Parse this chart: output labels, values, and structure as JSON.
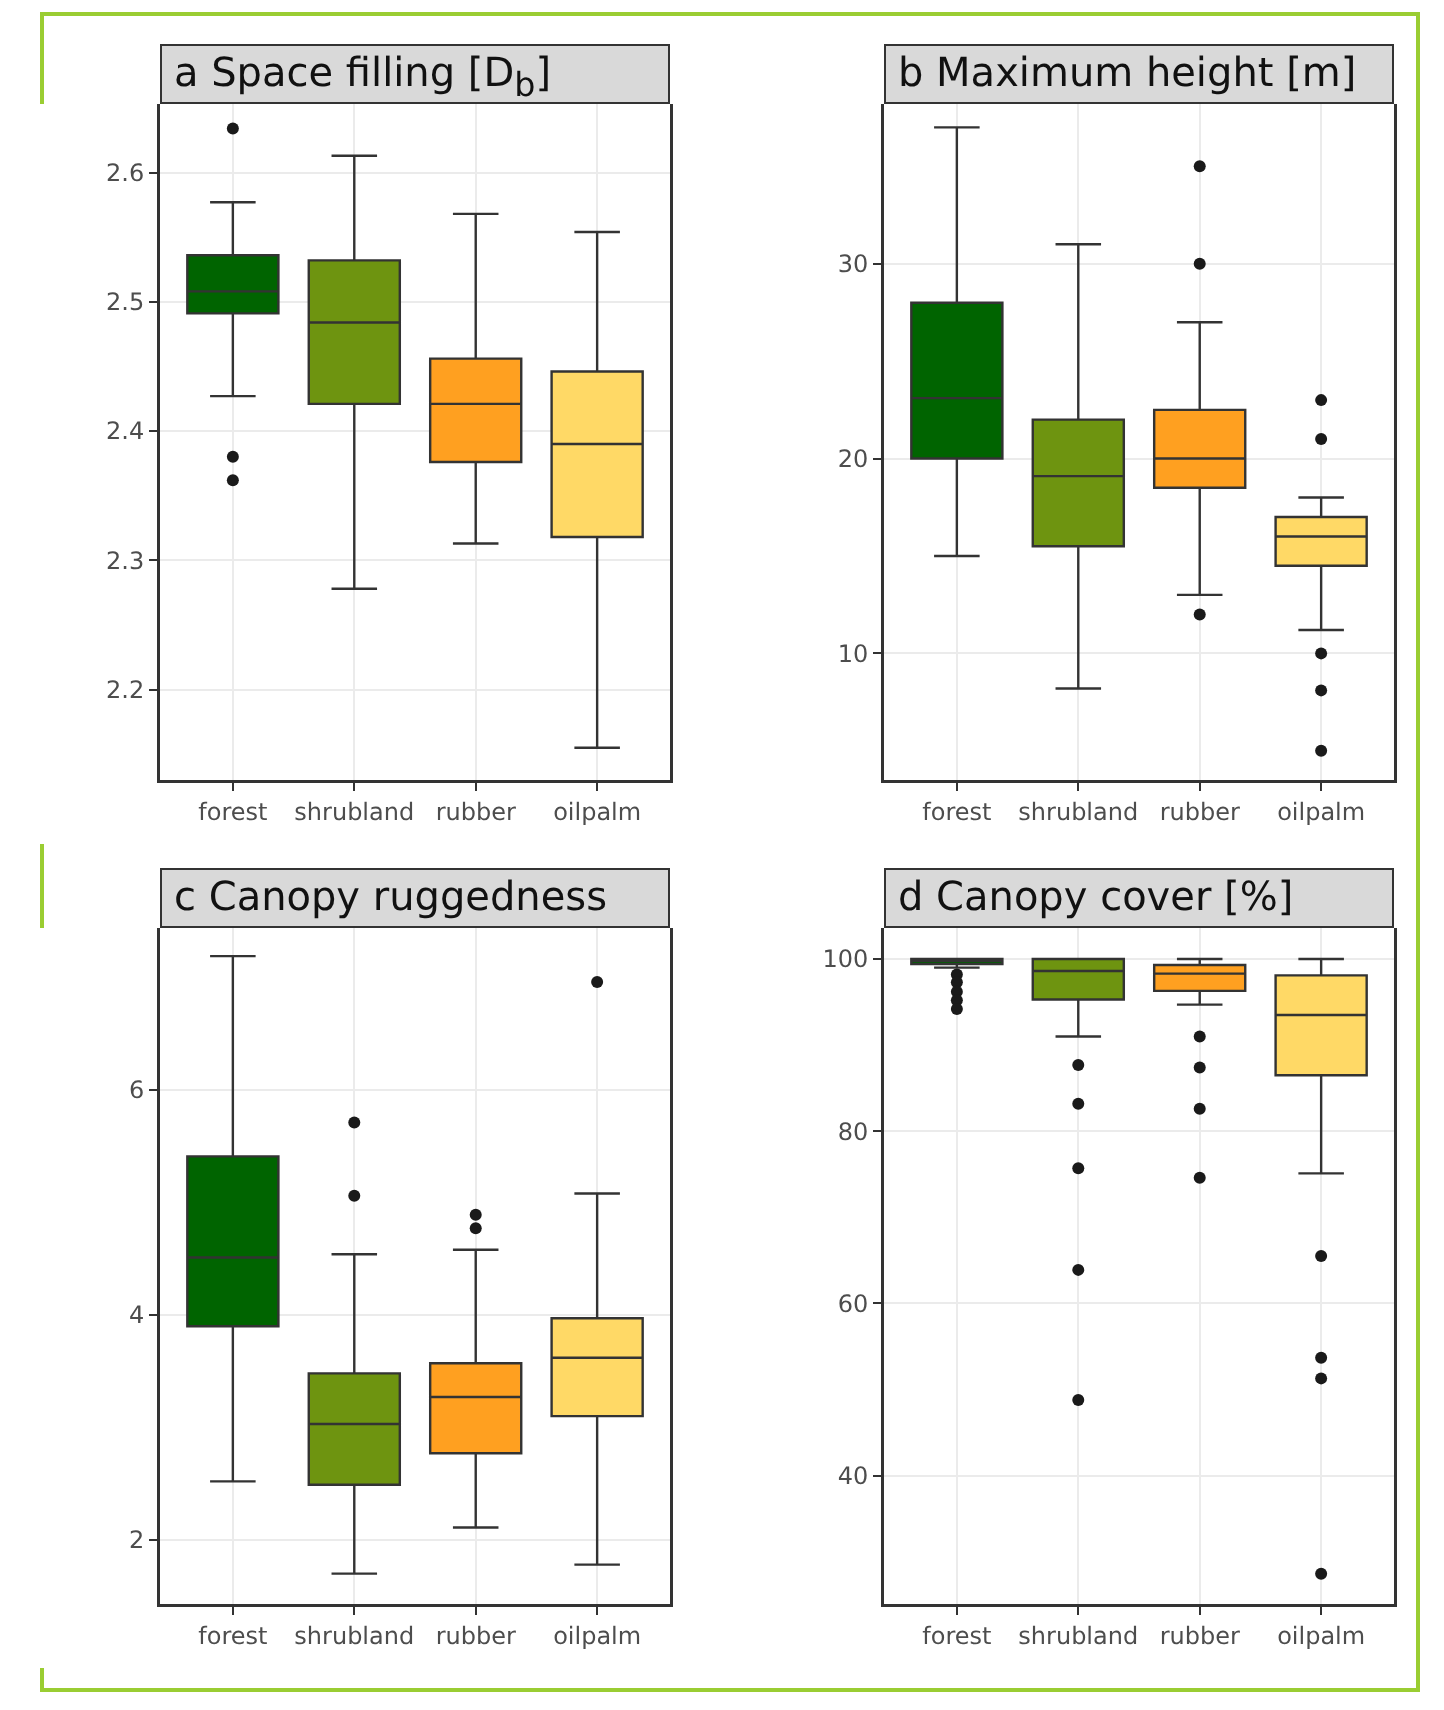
{
  "chart_data": [
    {
      "type": "box",
      "title": "a  Space filling [D$_{b}$]",
      "categories": [
        "forest",
        "shrubland",
        "rubber",
        "oilpalm"
      ],
      "colors": [
        "#006400",
        "#6e9410",
        "#ffa020",
        "#ffd966"
      ],
      "ylim": [
        2.13,
        2.653
      ],
      "yticks": [
        2.2,
        2.3,
        2.4,
        2.5,
        2.6
      ],
      "grid": true,
      "boxes": [
        {
          "low": 2.427,
          "q1": 2.491,
          "median": 2.508,
          "q3": 2.536,
          "high": 2.577,
          "outliers": [
            2.634,
            2.38,
            2.362
          ]
        },
        {
          "low": 2.278,
          "q1": 2.421,
          "median": 2.484,
          "q3": 2.532,
          "high": 2.613
        },
        {
          "low": 2.313,
          "q1": 2.376,
          "median": 2.421,
          "q3": 2.456,
          "high": 2.568
        },
        {
          "low": 2.155,
          "q1": 2.318,
          "median": 2.39,
          "q3": 2.446,
          "high": 2.554
        }
      ]
    },
    {
      "type": "box",
      "title": "b  Maximum height [m]",
      "categories": [
        "forest",
        "shrubland",
        "rubber",
        "oilpalm"
      ],
      "colors": [
        "#006400",
        "#6e9410",
        "#ffa020",
        "#ffd966"
      ],
      "ylim": [
        3.5,
        38.2
      ],
      "yticks": [
        10,
        20,
        30
      ],
      "grid": true,
      "boxes": [
        {
          "low": 15,
          "q1": 20,
          "median": 23.1,
          "q3": 28,
          "high": 37
        },
        {
          "low": 8.2,
          "q1": 15.5,
          "median": 19.1,
          "q3": 22,
          "high": 31
        },
        {
          "low": 13,
          "q1": 18.5,
          "median": 20,
          "q3": 22.5,
          "high": 27,
          "outliers": [
            35,
            30,
            12
          ]
        },
        {
          "low": 11.2,
          "q1": 14.5,
          "median": 16,
          "q3": 17,
          "high": 18,
          "outliers": [
            23,
            21,
            10,
            8.1,
            5
          ]
        }
      ]
    },
    {
      "type": "box",
      "title": "c  Canopy ruggedness",
      "categories": [
        "forest",
        "shrubland",
        "rubber",
        "oilpalm"
      ],
      "colors": [
        "#006400",
        "#6e9410",
        "#ffa020",
        "#ffd966"
      ],
      "ylim": [
        1.43,
        7.44
      ],
      "yticks": [
        2,
        4,
        6
      ],
      "grid": true,
      "boxes": [
        {
          "low": 2.52,
          "q1": 3.9,
          "median": 4.51,
          "q3": 5.41,
          "high": 7.19
        },
        {
          "low": 1.7,
          "q1": 2.49,
          "median": 3.03,
          "q3": 3.48,
          "high": 4.54,
          "outliers": [
            5.71,
            5.06
          ]
        },
        {
          "low": 2.11,
          "q1": 2.77,
          "median": 3.27,
          "q3": 3.57,
          "high": 4.58,
          "outliers": [
            4.89,
            4.77
          ]
        },
        {
          "low": 1.78,
          "q1": 3.1,
          "median": 3.62,
          "q3": 3.97,
          "high": 5.08,
          "outliers": [
            6.96
          ]
        }
      ]
    },
    {
      "type": "box",
      "title": "d  Canopy cover [%]",
      "categories": [
        "forest",
        "shrubland",
        "rubber",
        "oilpalm"
      ],
      "colors": [
        "#006400",
        "#6e9410",
        "#ffa020",
        "#ffd966"
      ],
      "ylim": [
        25.1,
        103.6
      ],
      "yticks": [
        40,
        60,
        80,
        100
      ],
      "grid": true,
      "boxes": [
        {
          "low": 99,
          "q1": 99.4,
          "median": 99.8,
          "q3": 100,
          "high": 100,
          "outliers": [
            98.2,
            97.3,
            96.2,
            95.2,
            94.2
          ]
        },
        {
          "low": 91,
          "q1": 95.3,
          "median": 98.6,
          "q3": 100,
          "high": 100,
          "outliers": [
            87.7,
            83.2,
            75.7,
            63.9,
            48.8
          ]
        },
        {
          "low": 94.7,
          "q1": 96.3,
          "median": 98.3,
          "q3": 99.3,
          "high": 100,
          "outliers": [
            91,
            87.4,
            82.6,
            74.6
          ]
        },
        {
          "low": 75.1,
          "q1": 86.5,
          "median": 93.5,
          "q3": 98.1,
          "high": 100,
          "outliers": [
            65.5,
            53.7,
            51.3,
            28.6
          ]
        }
      ]
    }
  ]
}
